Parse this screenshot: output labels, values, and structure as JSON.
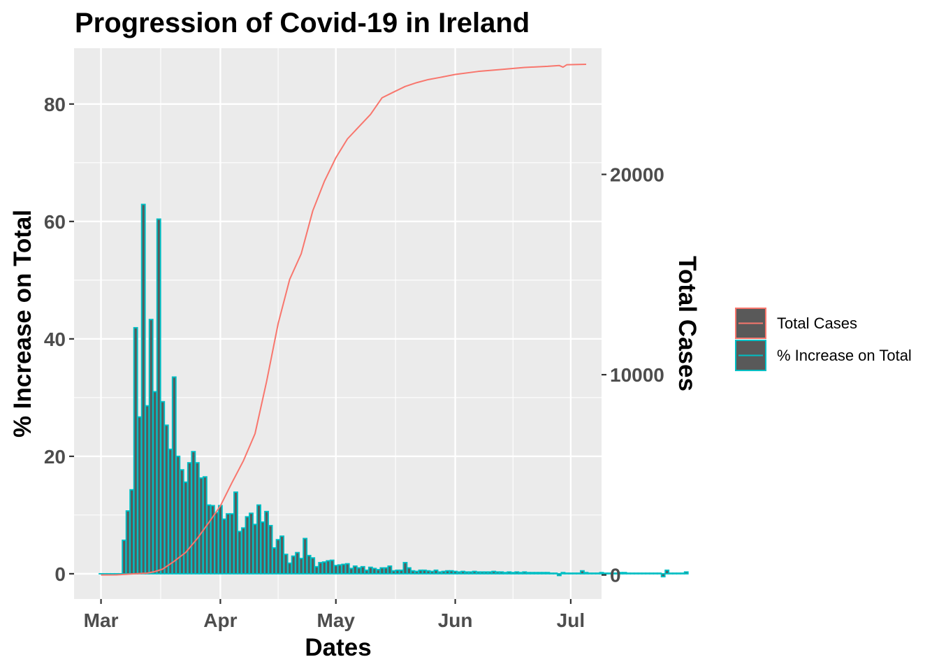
{
  "chart_data": {
    "type": "bar",
    "title": "Progression of Covid-19 in Ireland",
    "xlabel": "Dates",
    "ylabel": "% Increase on Total",
    "y2label": "Total Cases",
    "x_ticks": [
      {
        "date": "2020-03-01",
        "label": "Mar"
      },
      {
        "date": "2020-04-01",
        "label": "Apr"
      },
      {
        "date": "2020-05-01",
        "label": "May"
      },
      {
        "date": "2020-06-01",
        "label": "Jun"
      },
      {
        "date": "2020-07-01",
        "label": "Jul"
      }
    ],
    "xlim": [
      "2020-02-23",
      "2020-07-09"
    ],
    "y_ticks": [
      0,
      20,
      40,
      60,
      80
    ],
    "ylim": [
      -4.3,
      89.5
    ],
    "y2_ticks": [
      0,
      10000,
      20000
    ],
    "y2lim": [
      -1200,
      26300
    ],
    "grid": true,
    "panel_background": "#ebebeb",
    "legend": {
      "position": "right",
      "entries": [
        {
          "label": "Total Cases",
          "color": "#F8766D"
        },
        {
          "label": "% Increase on Total",
          "color": "#00BFC4"
        }
      ]
    },
    "bar_fill": "#595959",
    "bar_outline": "#00BFC4",
    "series": [
      {
        "name": "% Increase on Total",
        "type": "bar",
        "axis": "left",
        "start_date": "2020-03-01",
        "values": [
          0,
          0,
          0,
          0,
          0,
          0,
          5.7,
          10.7,
          14.3,
          41.9,
          26.7,
          62.9,
          28.6,
          43.3,
          31.0,
          60.4,
          29.3,
          25.3,
          21.2,
          33.5,
          20.0,
          17.7,
          15.6,
          18.9,
          20.8,
          18.9,
          16.3,
          16.5,
          11.7,
          11.6,
          10.4,
          11.6,
          9.3,
          10.2,
          10.2,
          13.9,
          7.2,
          7.8,
          9.7,
          10.3,
          8.4,
          11.7,
          8.8,
          10.6,
          8.2,
          4.4,
          5.8,
          6.4,
          3.3,
          1.8,
          3.0,
          3.6,
          2.6,
          6.0,
          3.1,
          2.7,
          1.2,
          1.9,
          2.0,
          2.2,
          2.3,
          1.4,
          1.5,
          1.6,
          1.7,
          0.9,
          1.3,
          1.0,
          1.2,
          0.6,
          1.1,
          0.9,
          0.7,
          1.0,
          1.0,
          1.3,
          0.5,
          0.6,
          0.6,
          1.9,
          1.0,
          0.5,
          0.4,
          0.6,
          0.6,
          0.5,
          0.4,
          0.6,
          0.3,
          0.4,
          0.5,
          0.5,
          0.4,
          0.3,
          0.4,
          0.3,
          0.3,
          0.4,
          0.3,
          0.3,
          0.3,
          0.3,
          0.4,
          0.3,
          0.3,
          0.2,
          0.3,
          0.2,
          0.3,
          0.2,
          0.3,
          0.2,
          0.2,
          0.2,
          0.2,
          0.2,
          0.2,
          0.1,
          0.1,
          -0.3,
          0.2,
          0.1,
          0.1,
          0.1,
          0.1,
          0.5,
          0.2,
          0.1,
          0.1,
          0.1,
          0.2,
          0.1,
          0.1,
          0.1,
          0.1,
          0.2,
          0.2,
          0.1,
          0.1,
          0.1,
          0.1,
          0.1,
          0.1,
          0.1,
          0.1,
          0.1,
          -0.5,
          0.6,
          0.1,
          0.1,
          0.1,
          0.1,
          0.3
        ]
      },
      {
        "name": "Total Cases",
        "type": "line",
        "axis": "right",
        "points": [
          {
            "date": "2020-03-01",
            "value": 0
          },
          {
            "date": "2020-03-05",
            "value": 6
          },
          {
            "date": "2020-03-09",
            "value": 50
          },
          {
            "date": "2020-03-13",
            "value": 90
          },
          {
            "date": "2020-03-15",
            "value": 170
          },
          {
            "date": "2020-03-17",
            "value": 292
          },
          {
            "date": "2020-03-20",
            "value": 683
          },
          {
            "date": "2020-03-23",
            "value": 1125
          },
          {
            "date": "2020-03-26",
            "value": 1819
          },
          {
            "date": "2020-03-29",
            "value": 2615
          },
          {
            "date": "2020-04-01",
            "value": 3447
          },
          {
            "date": "2020-04-04",
            "value": 4604
          },
          {
            "date": "2020-04-07",
            "value": 5709
          },
          {
            "date": "2020-04-10",
            "value": 7054
          },
          {
            "date": "2020-04-13",
            "value": 9655
          },
          {
            "date": "2020-04-16",
            "value": 12547
          },
          {
            "date": "2020-04-19",
            "value": 14758
          },
          {
            "date": "2020-04-22",
            "value": 16040
          },
          {
            "date": "2020-04-25",
            "value": 18184
          },
          {
            "date": "2020-04-28",
            "value": 19648
          },
          {
            "date": "2020-05-01",
            "value": 20833
          },
          {
            "date": "2020-05-04",
            "value": 21772
          },
          {
            "date": "2020-05-07",
            "value": 22385
          },
          {
            "date": "2020-05-10",
            "value": 22996
          },
          {
            "date": "2020-05-13",
            "value": 23827
          },
          {
            "date": "2020-05-16",
            "value": 24112
          },
          {
            "date": "2020-05-19",
            "value": 24391
          },
          {
            "date": "2020-05-22",
            "value": 24582
          },
          {
            "date": "2020-05-25",
            "value": 24735
          },
          {
            "date": "2020-05-28",
            "value": 24841
          },
          {
            "date": "2020-06-01",
            "value": 24990
          },
          {
            "date": "2020-06-07",
            "value": 25142
          },
          {
            "date": "2020-06-13",
            "value": 25238
          },
          {
            "date": "2020-06-19",
            "value": 25341
          },
          {
            "date": "2020-06-25",
            "value": 25396
          },
          {
            "date": "2020-06-28",
            "value": 25437
          },
          {
            "date": "2020-06-29",
            "value": 25355
          },
          {
            "date": "2020-06-30",
            "value": 25477
          },
          {
            "date": "2020-07-03",
            "value": 25489
          },
          {
            "date": "2020-07-05",
            "value": 25498
          }
        ]
      }
    ]
  }
}
